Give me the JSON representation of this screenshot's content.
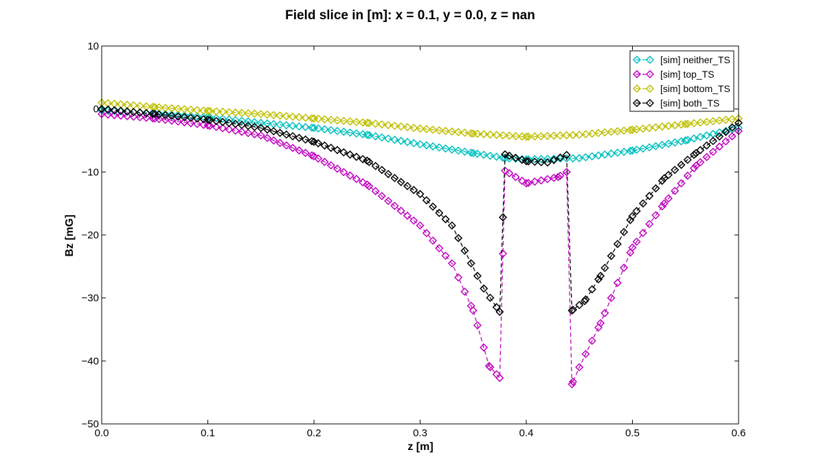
{
  "chart_data": {
    "type": "line",
    "title": "Field slice in [m]: x = 0.1, y = 0.0, z = nan",
    "xlabel": "z [m]",
    "ylabel": "Bz [mG]",
    "xlim": [
      0.0,
      0.6
    ],
    "ylim": [
      -50,
      10
    ],
    "xticks": [
      "0.0",
      "0.1",
      "0.2",
      "0.3",
      "0.4",
      "0.5",
      "0.6"
    ],
    "yticks": [
      "10",
      "0",
      "−10",
      "−20",
      "−30",
      "−40",
      "−50"
    ],
    "grid": false,
    "legend_position": "top-right",
    "marker": "hollow-diamond",
    "line_style": "dashed",
    "series": [
      {
        "name": "[sim] neither_TS",
        "color": "#00bfbf",
        "points": [
          [
            0.0,
            -0.2
          ],
          [
            0.05,
            -0.7
          ],
          [
            0.1,
            -1.3
          ],
          [
            0.15,
            -2.2
          ],
          [
            0.2,
            -3.0
          ],
          [
            0.25,
            -4.1
          ],
          [
            0.3,
            -5.6
          ],
          [
            0.35,
            -7.0
          ],
          [
            0.38,
            -7.8
          ],
          [
            0.4,
            -8.0
          ],
          [
            0.45,
            -7.8
          ],
          [
            0.5,
            -6.6
          ],
          [
            0.55,
            -5.0
          ],
          [
            0.6,
            -3.0
          ]
        ]
      },
      {
        "name": "[sim] top_TS",
        "color": "#bf00bf",
        "points": [
          [
            0.0,
            -0.8
          ],
          [
            0.05,
            -1.5
          ],
          [
            0.1,
            -2.6
          ],
          [
            0.15,
            -4.2
          ],
          [
            0.2,
            -7.5
          ],
          [
            0.25,
            -12.0
          ],
          [
            0.3,
            -18.5
          ],
          [
            0.33,
            -24.5
          ],
          [
            0.35,
            -32.0
          ],
          [
            0.365,
            -40.8
          ],
          [
            0.375,
            -42.7
          ],
          [
            0.38,
            -9.8
          ],
          [
            0.4,
            -11.8
          ],
          [
            0.43,
            -10.8
          ],
          [
            0.438,
            -10.0
          ],
          [
            0.443,
            -43.7
          ],
          [
            0.45,
            -41.0
          ],
          [
            0.47,
            -34.0
          ],
          [
            0.5,
            -22.0
          ],
          [
            0.53,
            -15.0
          ],
          [
            0.56,
            -9.0
          ],
          [
            0.6,
            -3.5
          ]
        ]
      },
      {
        "name": "[sim] bottom_TS",
        "color": "#bfbf00",
        "points": [
          [
            0.0,
            1.0
          ],
          [
            0.05,
            0.3
          ],
          [
            0.1,
            -0.3
          ],
          [
            0.15,
            -0.8
          ],
          [
            0.2,
            -1.5
          ],
          [
            0.25,
            -2.2
          ],
          [
            0.3,
            -3.1
          ],
          [
            0.35,
            -3.9
          ],
          [
            0.4,
            -4.4
          ],
          [
            0.45,
            -4.1
          ],
          [
            0.5,
            -3.3
          ],
          [
            0.55,
            -2.4
          ],
          [
            0.6,
            -1.5
          ]
        ]
      },
      {
        "name": "[sim] both_TS",
        "color": "#000000",
        "points": [
          [
            0.0,
            0.0
          ],
          [
            0.05,
            -0.8
          ],
          [
            0.1,
            -1.7
          ],
          [
            0.15,
            -3.0
          ],
          [
            0.2,
            -5.2
          ],
          [
            0.25,
            -8.2
          ],
          [
            0.3,
            -13.5
          ],
          [
            0.33,
            -18.5
          ],
          [
            0.36,
            -28.5
          ],
          [
            0.375,
            -32.2
          ],
          [
            0.38,
            -7.2
          ],
          [
            0.4,
            -8.3
          ],
          [
            0.42,
            -8.5
          ],
          [
            0.438,
            -7.3
          ],
          [
            0.443,
            -32.0
          ],
          [
            0.455,
            -30.5
          ],
          [
            0.47,
            -26.5
          ],
          [
            0.5,
            -17.0
          ],
          [
            0.53,
            -11.0
          ],
          [
            0.56,
            -7.0
          ],
          [
            0.6,
            -2.2
          ]
        ]
      }
    ]
  }
}
